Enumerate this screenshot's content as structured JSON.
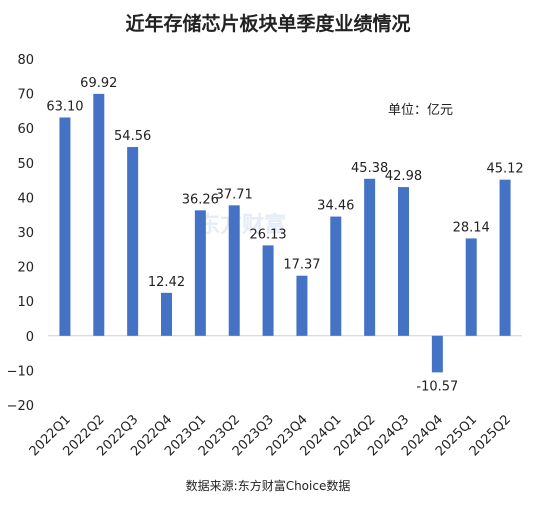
{
  "chart_data": {
    "type": "bar",
    "title": "近年存储芯片板块单季度业绩情况",
    "unit_note": "单位：亿元",
    "source": "数据来源:东方财富Choice数据",
    "watermark": "东方财富",
    "categories": [
      "2022Q1",
      "2022Q2",
      "2022Q3",
      "2022Q4",
      "2023Q1",
      "2023Q2",
      "2023Q3",
      "2023Q4",
      "2024Q1",
      "2024Q2",
      "2024Q3",
      "2024Q4",
      "2025Q1",
      "2025Q2"
    ],
    "values": [
      63.1,
      69.92,
      54.56,
      12.42,
      36.26,
      37.71,
      26.13,
      17.37,
      34.46,
      45.38,
      42.98,
      -10.57,
      28.14,
      45.12
    ],
    "value_labels": [
      "63.10",
      "69.92",
      "54.56",
      "12.42",
      "36.26",
      "37.71",
      "26.13",
      "17.37",
      "34.46",
      "45.38",
      "42.98",
      "-10.57",
      "28.14",
      "45.12"
    ],
    "ylim": [
      -20,
      80
    ],
    "yticks": [
      -20,
      -10,
      0,
      10,
      20,
      30,
      40,
      50,
      60,
      70,
      80
    ],
    "ytick_labels": [
      "−20",
      "−10",
      "0",
      "10",
      "20",
      "30",
      "40",
      "50",
      "60",
      "70",
      "80"
    ],
    "bar_color": "#4472C4",
    "grid": false,
    "legend": "none"
  }
}
